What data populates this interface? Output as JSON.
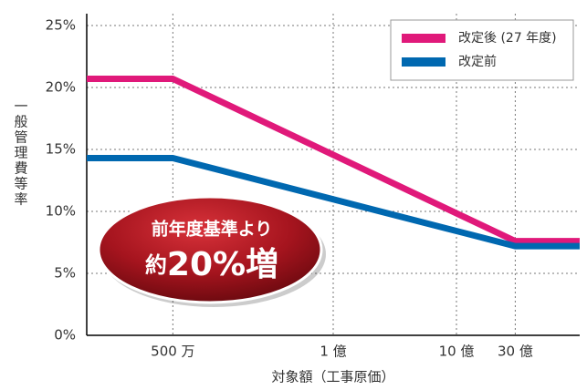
{
  "chart_data": {
    "type": "line",
    "x": [
      1000000,
      5000000,
      3000000000,
      10000000000
    ],
    "series": [
      {
        "name": "改定後 (27 年度)",
        "color": "#e0197a",
        "values": [
          20.7,
          20.7,
          7.6,
          7.6
        ]
      },
      {
        "name": "改定前",
        "color": "#0068b0",
        "values": [
          14.3,
          14.3,
          7.2,
          7.2
        ]
      }
    ],
    "xlim": [
      1000000,
      10000000000
    ],
    "xscale": "log",
    "xticks": [
      {
        "value": 5000000,
        "label": "500 万"
      },
      {
        "value": 100000000,
        "label": "1 億"
      },
      {
        "value": 1000000000,
        "label": "10 億"
      },
      {
        "value": 3000000000,
        "label": "30 億"
      }
    ],
    "ylim": [
      0,
      25
    ],
    "yticks": [
      {
        "value": 0,
        "label": "0%"
      },
      {
        "value": 5,
        "label": "5%"
      },
      {
        "value": 10,
        "label": "10%"
      },
      {
        "value": 15,
        "label": "15%"
      },
      {
        "value": 20,
        "label": "20%"
      },
      {
        "value": 25,
        "label": "25%"
      }
    ],
    "xlabel": "対象額（工事原価）",
    "ylabel": "一般管理費等率",
    "grid": true,
    "legend": "upper right",
    "annotations": [
      "前年度基準より",
      "約",
      "20%増"
    ]
  }
}
